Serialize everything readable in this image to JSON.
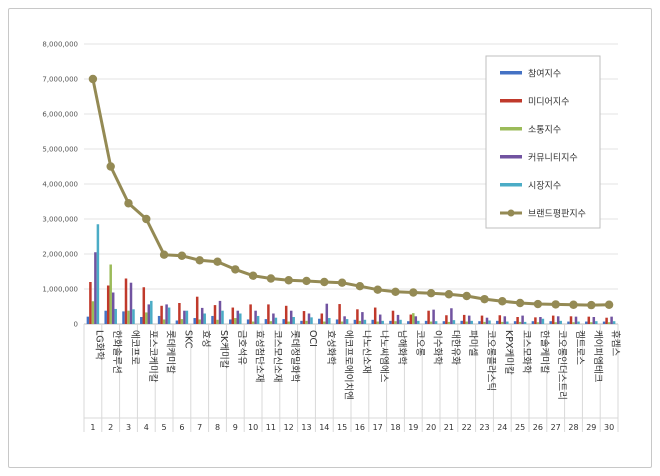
{
  "chart_data": {
    "type": "bar",
    "ylim": [
      0,
      8000000
    ],
    "yticks": [
      "0",
      "1,000,000",
      "2,000,000",
      "3,000,000",
      "4,000,000",
      "5,000,000",
      "6,000,000",
      "7,000,000",
      "8,000,000"
    ],
    "ranks": [
      "1",
      "2",
      "3",
      "4",
      "5",
      "6",
      "7",
      "8",
      "9",
      "10",
      "11",
      "12",
      "13",
      "14",
      "15",
      "16",
      "17",
      "18",
      "19",
      "20",
      "21",
      "22",
      "23",
      "24",
      "25",
      "26",
      "27",
      "28",
      "29",
      "30"
    ],
    "categories": [
      "LG화학",
      "한화솔루션",
      "에코프로",
      "포스코케미칼",
      "롯데케미칼",
      "SKC",
      "효성",
      "SK케미칼",
      "금호석유",
      "효성첨단소재",
      "코스모신소재",
      "롯데정밀화학",
      "OCI",
      "효성화학",
      "에코프로에이치엔",
      "나노신소재",
      "나노씨엠에스",
      "남해화학",
      "코오롱",
      "이수화학",
      "대한유화",
      "파미셀",
      "코오롱플라스틱",
      "KPX케미칼",
      "코스모화학",
      "한솔케미칼",
      "코오롱인더스트리",
      "켐트로스",
      "케이피엠테크",
      "휴켐스"
    ],
    "grid": true,
    "legend_position": "right",
    "series": [
      {
        "name": "참여지수",
        "color": "#4472c4",
        "type": "bar",
        "values": [
          210000,
          380000,
          360000,
          200000,
          230000,
          100000,
          170000,
          230000,
          130000,
          130000,
          140000,
          140000,
          90000,
          150000,
          130000,
          120000,
          120000,
          90000,
          80000,
          90000,
          80000,
          90000,
          80000,
          90000,
          80000,
          80000,
          80000,
          70000,
          70000,
          70000
        ]
      },
      {
        "name": "미디어지수",
        "color": "#c0392b",
        "type": "bar",
        "values": [
          1200000,
          1100000,
          1300000,
          1050000,
          520000,
          600000,
          780000,
          540000,
          470000,
          560000,
          560000,
          520000,
          370000,
          300000,
          570000,
          420000,
          470000,
          380000,
          270000,
          380000,
          250000,
          260000,
          240000,
          250000,
          200000,
          190000,
          240000,
          220000,
          210000,
          180000
        ]
      },
      {
        "name": "소통지수",
        "color": "#9bbb59",
        "type": "bar",
        "values": [
          650000,
          1700000,
          380000,
          330000,
          130000,
          140000,
          130000,
          120000,
          170000,
          70000,
          80000,
          70000,
          90000,
          70000,
          70000,
          90000,
          70000,
          80000,
          310000,
          70000,
          60000,
          70000,
          60000,
          60000,
          60000,
          50000,
          50000,
          50000,
          50000,
          50000
        ]
      },
      {
        "name": "커뮤니티지수",
        "color": "#7153a0",
        "type": "bar",
        "values": [
          2050000,
          900000,
          1180000,
          560000,
          560000,
          380000,
          460000,
          660000,
          380000,
          380000,
          300000,
          380000,
          300000,
          580000,
          220000,
          340000,
          270000,
          260000,
          220000,
          410000,
          450000,
          240000,
          180000,
          220000,
          240000,
          200000,
          220000,
          210000,
          200000,
          210000
        ]
      },
      {
        "name": "시장지수",
        "color": "#4bacc6",
        "type": "bar",
        "values": [
          2850000,
          430000,
          420000,
          660000,
          470000,
          380000,
          300000,
          380000,
          300000,
          230000,
          180000,
          200000,
          190000,
          170000,
          140000,
          120000,
          90000,
          120000,
          90000,
          80000,
          110000,
          90000,
          100000,
          70000,
          60000,
          150000,
          90000,
          70000,
          80000,
          80000
        ]
      },
      {
        "name": "브랜드평판지수",
        "color": "#948a54",
        "type": "line",
        "values": [
          7000000,
          4500000,
          3450000,
          3000000,
          1980000,
          1950000,
          1820000,
          1780000,
          1560000,
          1380000,
          1300000,
          1250000,
          1230000,
          1200000,
          1180000,
          1080000,
          980000,
          920000,
          900000,
          880000,
          850000,
          800000,
          710000,
          650000,
          600000,
          570000,
          560000,
          550000,
          540000,
          550000
        ]
      }
    ]
  }
}
